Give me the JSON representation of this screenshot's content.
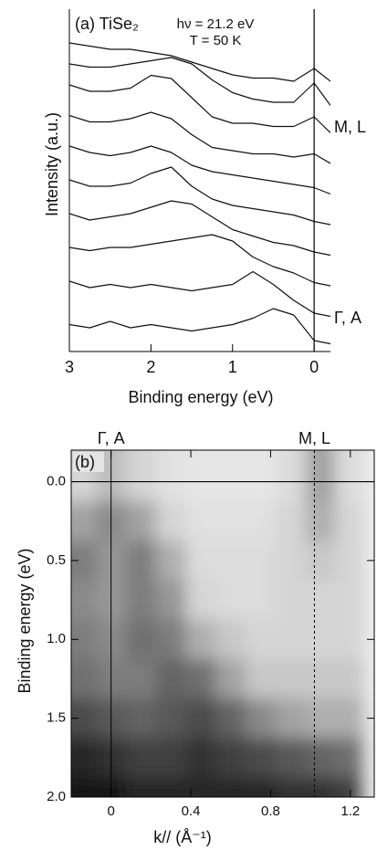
{
  "chart_data": [
    {
      "type": "waterfall",
      "title": "(a) TiSe₂",
      "annotations": [
        "hν = 21.2 eV",
        "T = 50 K"
      ],
      "side_labels": [
        "M, L",
        "Γ, A"
      ],
      "xlabel": "Binding energy   (eV)",
      "ylabel": "Intensity   (a.u.)",
      "xlim": [
        3,
        -0.2
      ],
      "xticks": [
        3,
        2,
        1,
        0
      ],
      "vlines": [
        0
      ],
      "color": "#111111",
      "x": [
        3,
        2.75,
        2.5,
        2.25,
        2,
        1.75,
        1.5,
        1.25,
        1,
        0.75,
        0.5,
        0.25,
        0,
        -0.2
      ],
      "series": [
        {
          "values": [
            0.35,
            0.3,
            0.4,
            0.3,
            0.35,
            0.3,
            0.25,
            0.3,
            0.35,
            0.45,
            0.6,
            0.5,
            0.1,
            0.05
          ]
        },
        {
          "values": [
            0.6,
            0.5,
            0.55,
            0.5,
            0.55,
            0.5,
            0.45,
            0.5,
            0.55,
            0.75,
            0.55,
            0.3,
            0.1,
            0.05
          ]
        },
        {
          "values": [
            0.7,
            0.65,
            0.7,
            0.7,
            0.75,
            0.8,
            0.85,
            0.9,
            0.8,
            0.55,
            0.4,
            0.3,
            0.15,
            0.1
          ]
        },
        {
          "values": [
            0.8,
            0.7,
            0.75,
            0.8,
            0.9,
            1.0,
            0.95,
            0.75,
            0.55,
            0.45,
            0.35,
            0.3,
            0.2,
            0.15
          ]
        },
        {
          "values": [
            0.9,
            0.8,
            0.8,
            0.85,
            1.0,
            1.1,
            0.8,
            0.6,
            0.5,
            0.45,
            0.4,
            0.35,
            0.25,
            0.2
          ]
        },
        {
          "values": [
            1.0,
            0.9,
            0.85,
            0.9,
            1.0,
            0.9,
            0.7,
            0.6,
            0.55,
            0.5,
            0.45,
            0.4,
            0.35,
            0.25
          ]
        },
        {
          "values": [
            1.05,
            0.95,
            0.95,
            1.0,
            1.1,
            1.0,
            0.75,
            0.55,
            0.5,
            0.45,
            0.45,
            0.4,
            0.45,
            0.3
          ]
        },
        {
          "values": [
            1.1,
            1.0,
            1.0,
            1.05,
            1.25,
            1.2,
            0.9,
            0.6,
            0.5,
            0.5,
            0.45,
            0.45,
            0.6,
            0.35
          ]
        },
        {
          "values": [
            1.0,
            0.95,
            0.95,
            1.0,
            1.05,
            1.1,
            1.0,
            0.75,
            0.55,
            0.45,
            0.4,
            0.4,
            0.7,
            0.35
          ]
        },
        {
          "values": [
            0.9,
            0.85,
            0.8,
            0.8,
            0.75,
            0.7,
            0.6,
            0.5,
            0.4,
            0.35,
            0.35,
            0.3,
            0.5,
            0.3
          ]
        }
      ]
    },
    {
      "type": "heatmap",
      "title": "(b)",
      "top_labels": [
        "Γ, A",
        "M, L"
      ],
      "xlabel": "k// (Å⁻¹)",
      "ylabel": "Binding energy   (eV)",
      "xlim": [
        -0.2,
        1.32
      ],
      "ylim": [
        2.0,
        -0.2
      ],
      "xticks": [
        0,
        0.4,
        0.8,
        1.2
      ],
      "yticks": [
        {
          "value": 0,
          "label": "0.0"
        },
        0.5,
        {
          "value": 1,
          "label": "1.0"
        },
        1.5,
        {
          "value": 2,
          "label": "2.0"
        }
      ],
      "vlines": [
        0,
        1.02
      ],
      "hlines": [
        0
      ],
      "x": [
        -0.15,
        0,
        0.15,
        0.3,
        0.45,
        0.6,
        0.75,
        0.9,
        1.05,
        1.2,
        1.35
      ],
      "y": [
        0,
        0.25,
        0.5,
        0.75,
        1.0,
        1.25,
        1.5,
        1.75,
        2.0
      ],
      "z": [
        [
          0.15,
          0.25,
          0.15,
          0.1,
          0.08,
          0.08,
          0.08,
          0.12,
          0.35,
          0.12,
          0.05
        ],
        [
          0.35,
          0.45,
          0.35,
          0.15,
          0.1,
          0.1,
          0.1,
          0.15,
          0.3,
          0.15,
          0.05
        ],
        [
          0.5,
          0.4,
          0.5,
          0.3,
          0.12,
          0.12,
          0.12,
          0.15,
          0.2,
          0.15,
          0.05
        ],
        [
          0.45,
          0.4,
          0.5,
          0.4,
          0.15,
          0.12,
          0.12,
          0.15,
          0.15,
          0.15,
          0.05
        ],
        [
          0.5,
          0.45,
          0.55,
          0.5,
          0.3,
          0.2,
          0.15,
          0.15,
          0.15,
          0.15,
          0.05
        ],
        [
          0.55,
          0.5,
          0.5,
          0.6,
          0.55,
          0.35,
          0.2,
          0.2,
          0.2,
          0.2,
          0.05
        ],
        [
          0.7,
          0.65,
          0.6,
          0.65,
          0.7,
          0.6,
          0.45,
          0.35,
          0.3,
          0.3,
          0.05
        ],
        [
          0.85,
          0.8,
          0.75,
          0.75,
          0.8,
          0.75,
          0.7,
          0.65,
          0.6,
          0.55,
          0.05
        ],
        [
          0.9,
          0.9,
          0.85,
          0.85,
          0.85,
          0.85,
          0.85,
          0.8,
          0.8,
          0.75,
          0.05
        ]
      ]
    }
  ]
}
